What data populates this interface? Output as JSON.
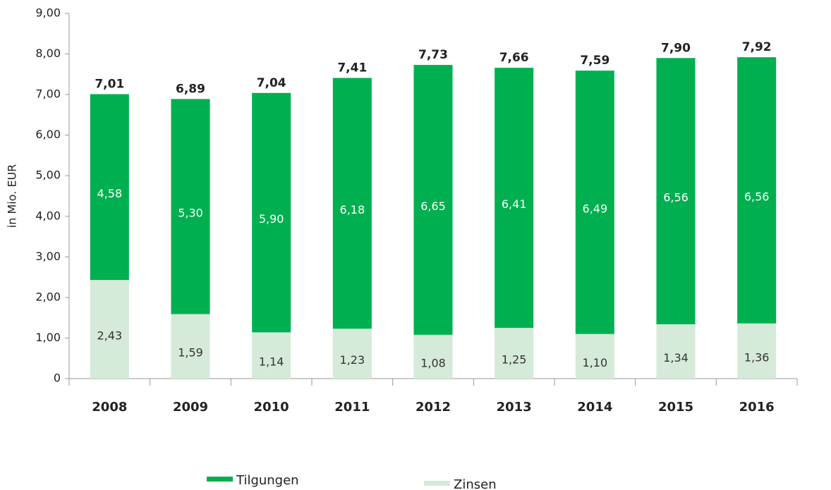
{
  "chart_data": {
    "type": "stacked_bar",
    "y_label": "in Mio. EUR",
    "categories": [
      "2008",
      "2009",
      "2010",
      "2011",
      "2012",
      "2013",
      "2014",
      "2015",
      "2016"
    ],
    "series": [
      {
        "name": "Zinsen",
        "color": "#d5ead8",
        "values": [
          2.43,
          1.59,
          1.14,
          1.23,
          1.08,
          1.25,
          1.1,
          1.34,
          1.36
        ],
        "value_labels": [
          "2,43",
          "1,59",
          "1,14",
          "1,23",
          "1,08",
          "1,25",
          "1,10",
          "1,34",
          "1,36"
        ]
      },
      {
        "name": "Tilgungen",
        "color": "#00b050",
        "values": [
          4.58,
          5.3,
          5.9,
          6.18,
          6.65,
          6.41,
          6.49,
          6.56,
          6.56
        ],
        "value_labels": [
          "4,58",
          "5,30",
          "5,90",
          "6,18",
          "6,65",
          "6,41",
          "6,49",
          "6,56",
          "6,56"
        ]
      }
    ],
    "totals": [
      7.01,
      6.89,
      7.04,
      7.41,
      7.73,
      7.66,
      7.59,
      7.9,
      7.92
    ],
    "total_labels": [
      "7,01",
      "6,89",
      "7,04",
      "7,41",
      "7,73",
      "7,66",
      "7,59",
      "7,90",
      "7,92"
    ],
    "ylim": [
      0,
      9
    ],
    "yticks": [
      0,
      {
        "value": 1,
        "label": "1,00"
      },
      {
        "value": 2,
        "label": "2,00"
      },
      {
        "value": 3,
        "label": "3,00"
      },
      {
        "value": 4,
        "label": "4,00"
      },
      {
        "value": 5,
        "label": "5,00"
      },
      {
        "value": 6,
        "label": "6,00"
      },
      {
        "value": 7,
        "label": "7,00"
      },
      {
        "value": 8,
        "label": "8,00"
      },
      {
        "value": 9,
        "label": "9,00"
      }
    ],
    "grid": false
  }
}
